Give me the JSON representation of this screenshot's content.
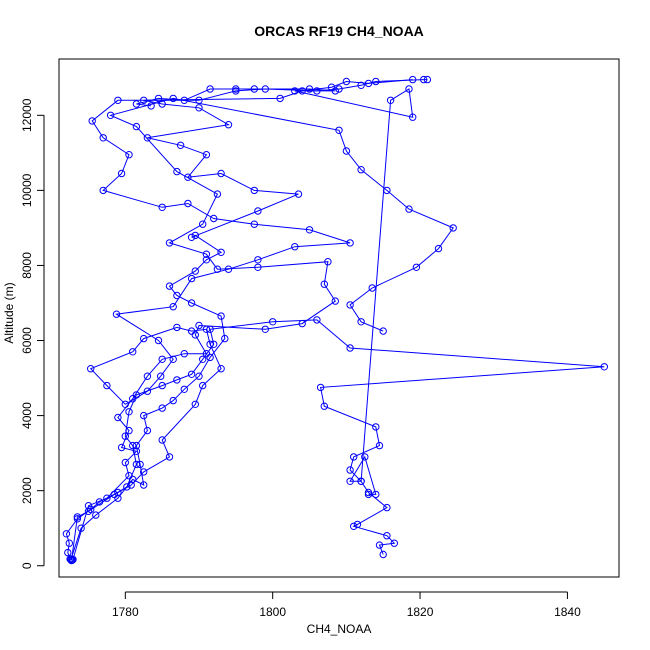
{
  "chart_data": {
    "type": "line",
    "title": "ORCAS RF19 CH4_NOAA",
    "xlabel": "CH4_NOAA",
    "ylabel": "Altitude (m)",
    "xlim": [
      1771,
      1847
    ],
    "ylim": [
      -300,
      13500
    ],
    "xticks": [
      1780,
      1800,
      1820,
      1840
    ],
    "yticks": [
      0,
      2000,
      4000,
      6000,
      8000,
      10000,
      12000
    ],
    "grid": false,
    "legend": "none",
    "color": "#0000ff",
    "marker": "open-circle",
    "series": [
      {
        "values": [
          [
            1772.8,
            150
          ],
          [
            1772.5,
            180
          ],
          [
            1772.2,
            350
          ],
          [
            1772.4,
            600
          ],
          [
            1772.0,
            850
          ],
          [
            1773.5,
            1250
          ],
          [
            1775.3,
            1500
          ],
          [
            1776.5,
            1700
          ],
          [
            1779.0,
            1950
          ],
          [
            1780.8,
            2150
          ],
          [
            1782.5,
            2500
          ],
          [
            1786.0,
            2900
          ],
          [
            1785.0,
            3350
          ],
          [
            1789.5,
            4300
          ],
          [
            1790.5,
            4800
          ],
          [
            1793.0,
            5250
          ],
          [
            1791.5,
            5900
          ],
          [
            1791.0,
            6300
          ],
          [
            1789.0,
            6250
          ],
          [
            1787.0,
            6350
          ],
          [
            1782.5,
            6050
          ],
          [
            1781.0,
            5700
          ],
          [
            1775.3,
            5250
          ],
          [
            1777.5,
            4800
          ],
          [
            1780.0,
            4300
          ],
          [
            1783.0,
            4650
          ],
          [
            1784.8,
            5050
          ],
          [
            1786.5,
            5500
          ],
          [
            1784.5,
            6000
          ],
          [
            1778.8,
            6700
          ],
          [
            1786.5,
            6900
          ],
          [
            1789.0,
            7650
          ],
          [
            1794.0,
            7900
          ],
          [
            1798.0,
            8150
          ],
          [
            1803.0,
            8500
          ],
          [
            1810.5,
            8600
          ],
          [
            1805.0,
            8950
          ],
          [
            1797.5,
            9100
          ],
          [
            1792.0,
            9250
          ],
          [
            1788.5,
            9650
          ],
          [
            1785.0,
            9550
          ],
          [
            1777.0,
            10000
          ],
          [
            1779.5,
            10450
          ],
          [
            1780.5,
            10950
          ],
          [
            1777.0,
            11400
          ],
          [
            1775.5,
            11850
          ],
          [
            1779.0,
            12400
          ],
          [
            1790.0,
            12400
          ],
          [
            1795.0,
            12650
          ],
          [
            1799.0,
            12700
          ],
          [
            1806.0,
            12650
          ],
          [
            1809.0,
            12700
          ],
          [
            1812.0,
            12800
          ],
          [
            1814.0,
            12900
          ],
          [
            1820.5,
            12950
          ],
          [
            1821.0,
            12950
          ]
        ]
      },
      {
        "values": [
          [
            1772.7,
            140
          ],
          [
            1773.5,
            1300
          ],
          [
            1775.0,
            1450
          ],
          [
            1778.5,
            1900
          ],
          [
            1780.2,
            2100
          ],
          [
            1781.5,
            2700
          ],
          [
            1781.0,
            3200
          ],
          [
            1780.0,
            3450
          ],
          [
            1780.5,
            4100
          ],
          [
            1781.5,
            4550
          ],
          [
            1785.0,
            4800
          ],
          [
            1787.0,
            4950
          ],
          [
            1789.0,
            5100
          ],
          [
            1790.5,
            5500
          ],
          [
            1792.0,
            5900
          ],
          [
            1791.5,
            6300
          ],
          [
            1800.0,
            6500
          ],
          [
            1806.0,
            6550
          ],
          [
            1810.5,
            5800
          ],
          [
            1845.0,
            5300
          ],
          [
            1806.5,
            4750
          ],
          [
            1807.0,
            4250
          ],
          [
            1814.0,
            3700
          ],
          [
            1814.5,
            3200
          ],
          [
            1811.0,
            2900
          ],
          [
            1810.5,
            2550
          ],
          [
            1812.0,
            2250
          ],
          [
            1813.0,
            1950
          ],
          [
            1815.5,
            1550
          ],
          [
            1811.5,
            1100
          ],
          [
            1811.0,
            1050
          ],
          [
            1815.5,
            800
          ],
          [
            1816.5,
            600
          ],
          [
            1814.5,
            550
          ],
          [
            1815.0,
            300
          ]
        ]
      },
      {
        "values": [
          [
            1772.6,
            160
          ],
          [
            1774.0,
            1000
          ],
          [
            1776.0,
            1350
          ],
          [
            1779.0,
            1800
          ],
          [
            1781.0,
            2300
          ],
          [
            1782.5,
            2150
          ],
          [
            1782.0,
            2700
          ],
          [
            1781.5,
            3200
          ],
          [
            1783.0,
            3600
          ],
          [
            1782.5,
            4000
          ],
          [
            1785.0,
            4200
          ],
          [
            1786.5,
            4400
          ],
          [
            1788.0,
            4700
          ],
          [
            1790.0,
            5050
          ],
          [
            1791.5,
            5550
          ],
          [
            1793.5,
            6050
          ],
          [
            1793.0,
            6650
          ],
          [
            1789.0,
            7000
          ],
          [
            1787.0,
            7200
          ],
          [
            1786.0,
            7450
          ],
          [
            1789.5,
            7850
          ],
          [
            1791.0,
            8150
          ],
          [
            1793.0,
            8350
          ],
          [
            1789.5,
            8800
          ],
          [
            1789.0,
            8750
          ],
          [
            1798.0,
            9450
          ],
          [
            1803.5,
            9900
          ],
          [
            1797.5,
            10000
          ],
          [
            1793.0,
            10450
          ],
          [
            1788.5,
            10350
          ],
          [
            1791.0,
            10950
          ],
          [
            1787.5,
            11200
          ],
          [
            1783.0,
            11400
          ],
          [
            1794.0,
            11750
          ],
          [
            1790.0,
            12200
          ],
          [
            1785.0,
            12300
          ],
          [
            1782.5,
            12400
          ],
          [
            1801.0,
            12450
          ],
          [
            1804.0,
            12650
          ],
          [
            1808.0,
            12750
          ],
          [
            1810.0,
            12900
          ],
          [
            1813.0,
            12850
          ],
          [
            1819.0,
            12950
          ]
        ]
      },
      {
        "values": [
          [
            1772.9,
            170
          ],
          [
            1775.0,
            1600
          ],
          [
            1777.5,
            1800
          ],
          [
            1780.5,
            2400
          ],
          [
            1780.0,
            2750
          ],
          [
            1781.5,
            3050
          ],
          [
            1779.5,
            3150
          ],
          [
            1780.5,
            3600
          ],
          [
            1779.0,
            3950
          ],
          [
            1781.0,
            4450
          ],
          [
            1783.0,
            5050
          ],
          [
            1785.0,
            5500
          ],
          [
            1788.0,
            5650
          ],
          [
            1791.0,
            5650
          ],
          [
            1789.5,
            6150
          ],
          [
            1790.0,
            6400
          ],
          [
            1799.0,
            6300
          ],
          [
            1804.0,
            6450
          ],
          [
            1808.5,
            7050
          ],
          [
            1807.0,
            7500
          ],
          [
            1807.5,
            8100
          ],
          [
            1798.0,
            7950
          ],
          [
            1792.5,
            7900
          ],
          [
            1791.0,
            8300
          ],
          [
            1786.0,
            8600
          ],
          [
            1790.5,
            9100
          ],
          [
            1792.5,
            9900
          ],
          [
            1787.0,
            10500
          ],
          [
            1781.5,
            11700
          ],
          [
            1778.0,
            12000
          ],
          [
            1786.5,
            12450
          ],
          [
            1809.0,
            11600
          ],
          [
            1810.0,
            11050
          ],
          [
            1812.0,
            10550
          ],
          [
            1815.5,
            10000
          ],
          [
            1818.5,
            9500
          ],
          [
            1824.5,
            9000
          ],
          [
            1822.5,
            8450
          ],
          [
            1819.5,
            7950
          ],
          [
            1813.5,
            7400
          ],
          [
            1810.5,
            6950
          ],
          [
            1812.0,
            6500
          ],
          [
            1815.0,
            6250
          ]
        ]
      },
      {
        "values": [
          [
            1813.0,
            1900
          ],
          [
            1814.0,
            1900
          ],
          [
            1812.5,
            2900
          ],
          [
            1810.5,
            2250
          ],
          [
            1812.0,
            2250
          ],
          [
            1816.0,
            12400
          ],
          [
            1818.5,
            12700
          ],
          [
            1819.0,
            11950
          ],
          [
            1803.0,
            12650
          ],
          [
            1808.5,
            12650
          ],
          [
            1805.0,
            12700
          ],
          [
            1797.5,
            12700
          ],
          [
            1795.0,
            12700
          ],
          [
            1791.5,
            12700
          ],
          [
            1788.0,
            12400
          ],
          [
            1784.5,
            12450
          ],
          [
            1781.5,
            12300
          ],
          [
            1783.5,
            12250
          ]
        ]
      }
    ]
  }
}
